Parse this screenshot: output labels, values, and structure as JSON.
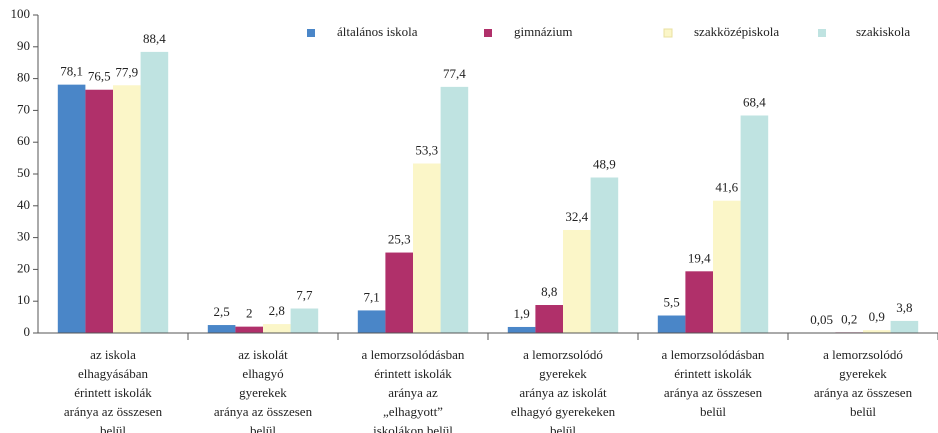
{
  "chart_data": {
    "type": "bar",
    "categories": [
      [
        "az iskola",
        "elhagyásában",
        "érintett iskolák",
        "aránya az összesen",
        "belül"
      ],
      [
        "az iskolát",
        "elhagyó",
        "gyerekek",
        "aránya az összesen",
        "belül"
      ],
      [
        "a lemorzsolódásban",
        "érintett iskolák",
        "aránya az",
        "„elhagyott”",
        "iskolákon belül"
      ],
      [
        "a lemorzsolódó",
        "gyerekek",
        "aránya az iskolát",
        "elhagyó gyerekeken",
        "belül"
      ],
      [
        "a lemorzsolódásban",
        "érintett iskolák",
        "aránya az összesen",
        "belül"
      ],
      [
        "a lemorzsolódó",
        "gyerekek",
        "aránya az összesen",
        "belül"
      ]
    ],
    "series": [
      {
        "name": "általános iskola",
        "color": "#4a86c8",
        "values": [
          78.1,
          2.5,
          7.1,
          1.9,
          5.5,
          0.05
        ],
        "value_labels": [
          "78,1",
          "2,5",
          "7,1",
          "1,9",
          "5,5",
          "0,05"
        ]
      },
      {
        "name": "gimnázium",
        "color": "#b0306a",
        "values": [
          76.5,
          2,
          25.3,
          8.8,
          19.4,
          0.2
        ],
        "value_labels": [
          "76,5",
          "2",
          "25,3",
          "8,8",
          "19,4",
          "0,2"
        ]
      },
      {
        "name": "szakközépiskola",
        "color": "#fbf6c8",
        "values": [
          77.9,
          2.8,
          53.3,
          32.4,
          41.6,
          0.9
        ],
        "value_labels": [
          "77,9",
          "2,8",
          "53,3",
          "32,4",
          "41,6",
          "0,9"
        ]
      },
      {
        "name": "szakiskola",
        "color": "#bfe3e1",
        "values": [
          88.4,
          7.7,
          77.4,
          48.9,
          68.4,
          3.8
        ],
        "value_labels": [
          "88,4",
          "7,7",
          "77,4",
          "48,9",
          "68,4",
          "3,8"
        ]
      }
    ],
    "ylim": [
      0,
      100
    ],
    "yticks": [
      0,
      10,
      20,
      30,
      40,
      50,
      60,
      70,
      80,
      90,
      100
    ],
    "grid": false,
    "legend": "top"
  }
}
